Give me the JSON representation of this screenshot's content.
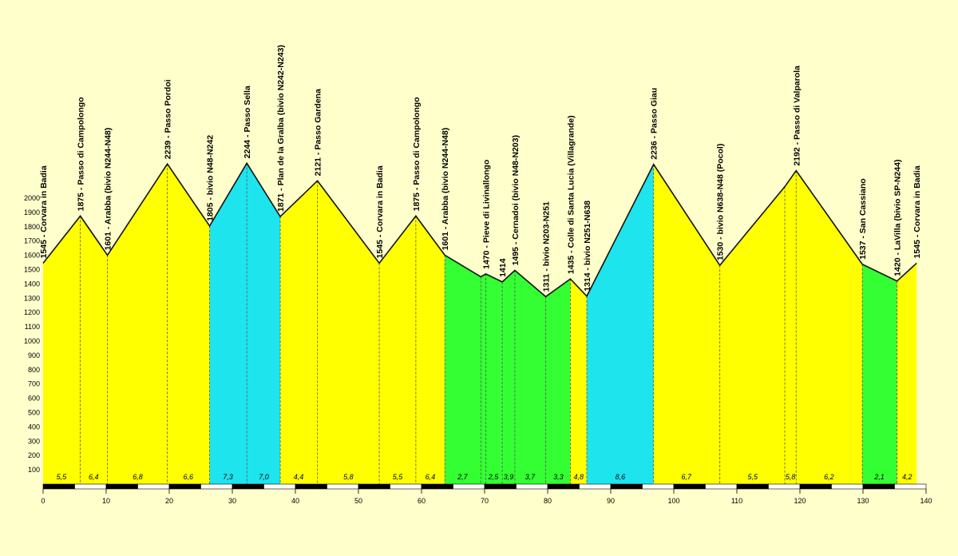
{
  "chart_data": {
    "type": "area",
    "xlim": [
      0,
      140
    ],
    "ylim": [
      0,
      2000
    ],
    "x_ticks": [
      0,
      10,
      20,
      30,
      40,
      50,
      60,
      70,
      80,
      90,
      100,
      110,
      120,
      130,
      140
    ],
    "y_ticks": [
      100,
      200,
      300,
      400,
      500,
      600,
      700,
      800,
      900,
      1000,
      1100,
      1200,
      1300,
      1400,
      1500,
      1600,
      1700,
      1800,
      1900,
      2000
    ],
    "colors": {
      "yellow": "#ffff00",
      "cyan": "#1ee4ee",
      "green": "#33ff33",
      "background": "#ffffcc"
    },
    "points": [
      {
        "x": 0,
        "y": 1545,
        "label": "1545 - Corvara in Badia"
      },
      {
        "x": 5.9,
        "y": 1875,
        "label": "1875 - Passo di Campolongo"
      },
      {
        "x": 10.2,
        "y": 1601,
        "label": "1601 - Arabba (bivio N244-N48)"
      },
      {
        "x": 19.7,
        "y": 2239,
        "label": "2239 - Passo Pordoi"
      },
      {
        "x": 26.4,
        "y": 1805,
        "label": "1805 - bivio N48-N242"
      },
      {
        "x": 32.3,
        "y": 2244,
        "label": "2244 - Passo Sella"
      },
      {
        "x": 37.6,
        "y": 1871,
        "label": "1871 - Plan de la Gralba (bivio N242-N243)"
      },
      {
        "x": 43.5,
        "y": 2121,
        "label": "2121 - Passo Gardena"
      },
      {
        "x": 53.3,
        "y": 1545,
        "label": "1545 - Corvara in Badia"
      },
      {
        "x": 59.1,
        "y": 1875,
        "label": "1875 - Passo di Campolongo"
      },
      {
        "x": 63.7,
        "y": 1601,
        "label": "1601 - Arabba (bivio N244-N48)"
      },
      {
        "x": 69.4,
        "y": 1450,
        "label": ""
      },
      {
        "x": 70.2,
        "y": 1470,
        "label": "1470 - Pieve di Livinallongo"
      },
      {
        "x": 72.8,
        "y": 1414,
        "label": "1414"
      },
      {
        "x": 74.8,
        "y": 1495,
        "label": "1495 - Cernadoi (bivio N48-N203)"
      },
      {
        "x": 79.7,
        "y": 1311,
        "label": "1311 - bivio N203-N251"
      },
      {
        "x": 83.6,
        "y": 1435,
        "label": "1435 - Colle di Santa Lucia (Villagrande)"
      },
      {
        "x": 86.2,
        "y": 1314,
        "label": "1314 - bivio N251-N638"
      },
      {
        "x": 96.8,
        "y": 2236,
        "label": "2236 - Passo Giau"
      },
      {
        "x": 107.3,
        "y": 1530,
        "label": "1530 - bivio N638-N48 (Pocol)"
      },
      {
        "x": 117.6,
        "y": 2080,
        "label": ""
      },
      {
        "x": 119.4,
        "y": 2192,
        "label": "2192 - Passo di Valparola"
      },
      {
        "x": 129.9,
        "y": 1537,
        "label": "1537 - San Cassiano"
      },
      {
        "x": 135.4,
        "y": 1420,
        "label": "1420 - LaVilla (bivio SP-N244)"
      },
      {
        "x": 138.5,
        "y": 1545,
        "label": "1545 - Corvara in Badia"
      }
    ],
    "segments": [
      {
        "from": 0,
        "to": 10.2,
        "color": "yellow"
      },
      {
        "from": 10.2,
        "to": 26.4,
        "color": "yellow"
      },
      {
        "from": 26.4,
        "to": 37.6,
        "color": "cyan"
      },
      {
        "from": 37.6,
        "to": 63.7,
        "color": "yellow"
      },
      {
        "from": 63.7,
        "to": 83.6,
        "color": "green"
      },
      {
        "from": 83.6,
        "to": 86.2,
        "color": "yellow"
      },
      {
        "from": 86.2,
        "to": 96.8,
        "color": "cyan"
      },
      {
        "from": 96.8,
        "to": 129.9,
        "color": "yellow"
      },
      {
        "from": 129.9,
        "to": 135.4,
        "color": "green"
      },
      {
        "from": 135.4,
        "to": 138.5,
        "color": "yellow"
      }
    ],
    "gradients": [
      {
        "x": 2.9,
        "label": "5,5"
      },
      {
        "x": 8.0,
        "label": "6,4"
      },
      {
        "x": 15.0,
        "label": "6,8"
      },
      {
        "x": 23.0,
        "label": "6,6"
      },
      {
        "x": 29.3,
        "label": "7,3"
      },
      {
        "x": 35.0,
        "label": "7,0"
      },
      {
        "x": 40.5,
        "label": "4,4"
      },
      {
        "x": 48.4,
        "label": "5,8"
      },
      {
        "x": 56.2,
        "label": "5,5"
      },
      {
        "x": 61.4,
        "label": "6,4"
      },
      {
        "x": 66.5,
        "label": "2,7"
      },
      {
        "x": 71.4,
        "label": "2,5"
      },
      {
        "x": 73.8,
        "label": "3,9"
      },
      {
        "x": 77.2,
        "label": "3,7"
      },
      {
        "x": 81.7,
        "label": "3,3"
      },
      {
        "x": 84.9,
        "label": "4,8"
      },
      {
        "x": 91.5,
        "label": "8,6"
      },
      {
        "x": 102.0,
        "label": "6,7"
      },
      {
        "x": 112.5,
        "label": "5,5"
      },
      {
        "x": 118.5,
        "label": "5,8"
      },
      {
        "x": 124.6,
        "label": "6,2"
      },
      {
        "x": 132.6,
        "label": "2,1"
      },
      {
        "x": 137.0,
        "label": "4,2"
      }
    ]
  }
}
